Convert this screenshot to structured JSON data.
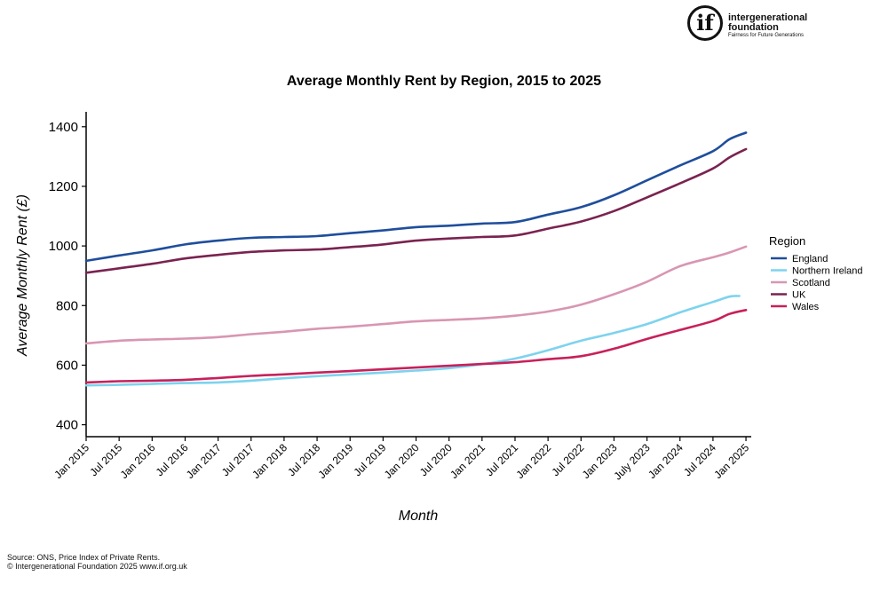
{
  "logo": {
    "mark": "if",
    "line1": "intergenerational",
    "line2": "foundation",
    "tagline": "Fairness for Future Generations"
  },
  "source": {
    "line1": "Source: ONS, Price Index of Private Rents.",
    "line2": "© Intergenerational Foundation 2025 www.if.org.uk"
  },
  "chart_data": {
    "type": "line",
    "title": "Average Monthly Rent by Region, 2015 to 2025",
    "xlabel": "Month",
    "ylabel": "Average Monthly Rent (£)",
    "ylim": [
      360,
      1450
    ],
    "yticks": [
      400,
      600,
      800,
      1000,
      1200,
      1400
    ],
    "xlim": [
      2015.0,
      2025.08
    ],
    "xticks": [
      {
        "label": "Jan 2015",
        "x": 2015.0
      },
      {
        "label": "Jul 2015",
        "x": 2015.5
      },
      {
        "label": "Jan 2016",
        "x": 2016.0
      },
      {
        "label": "Jul 2016",
        "x": 2016.5
      },
      {
        "label": "Jan 2017",
        "x": 2017.0
      },
      {
        "label": "Jul 2017",
        "x": 2017.5
      },
      {
        "label": "Jan 2018",
        "x": 2018.0
      },
      {
        "label": "Jul 2018",
        "x": 2018.5
      },
      {
        "label": "Jan 2019",
        "x": 2019.0
      },
      {
        "label": "Jul 2019",
        "x": 2019.5
      },
      {
        "label": "Jan 2020",
        "x": 2020.0
      },
      {
        "label": "Jul 2020",
        "x": 2020.5
      },
      {
        "label": "Jan 2021",
        "x": 2021.0
      },
      {
        "label": "Jul 2021",
        "x": 2021.5
      },
      {
        "label": "Jan 2022",
        "x": 2022.0
      },
      {
        "label": "Jul 2022",
        "x": 2022.5
      },
      {
        "label": "Jan 2023",
        "x": 2023.0
      },
      {
        "label": "July 2023",
        "x": 2023.5
      },
      {
        "label": "Jan 2024",
        "x": 2024.0
      },
      {
        "label": "Jul 2024",
        "x": 2024.5
      },
      {
        "label": "Jan 2025",
        "x": 2025.0
      }
    ],
    "grid": false,
    "legend": {
      "title": "Region",
      "position": "right"
    },
    "series": [
      {
        "name": "England",
        "color": "#1f4e9c",
        "points": [
          [
            2015.0,
            950
          ],
          [
            2015.5,
            968
          ],
          [
            2016.0,
            985
          ],
          [
            2016.5,
            1005
          ],
          [
            2017.0,
            1018
          ],
          [
            2017.5,
            1027
          ],
          [
            2018.0,
            1030
          ],
          [
            2018.5,
            1033
          ],
          [
            2019.0,
            1043
          ],
          [
            2019.5,
            1052
          ],
          [
            2020.0,
            1063
          ],
          [
            2020.5,
            1068
          ],
          [
            2021.0,
            1075
          ],
          [
            2021.5,
            1080
          ],
          [
            2022.0,
            1105
          ],
          [
            2022.5,
            1130
          ],
          [
            2023.0,
            1170
          ],
          [
            2023.5,
            1220
          ],
          [
            2024.0,
            1270
          ],
          [
            2024.5,
            1318
          ],
          [
            2024.75,
            1358
          ],
          [
            2025.0,
            1380
          ]
        ]
      },
      {
        "name": "Northern Ireland",
        "color": "#7dd3ee",
        "points": [
          [
            2015.0,
            532
          ],
          [
            2015.5,
            534
          ],
          [
            2016.0,
            537
          ],
          [
            2016.5,
            540
          ],
          [
            2017.0,
            542
          ],
          [
            2017.5,
            548
          ],
          [
            2018.0,
            556
          ],
          [
            2018.5,
            563
          ],
          [
            2019.0,
            569
          ],
          [
            2019.5,
            575
          ],
          [
            2020.0,
            582
          ],
          [
            2020.5,
            590
          ],
          [
            2021.0,
            603
          ],
          [
            2021.5,
            622
          ],
          [
            2022.0,
            650
          ],
          [
            2022.5,
            682
          ],
          [
            2023.0,
            708
          ],
          [
            2023.5,
            738
          ],
          [
            2024.0,
            777
          ],
          [
            2024.5,
            812
          ],
          [
            2024.75,
            830
          ],
          [
            2024.9,
            832
          ]
        ]
      },
      {
        "name": "Scotland",
        "color": "#d896b2",
        "points": [
          [
            2015.0,
            673
          ],
          [
            2015.5,
            682
          ],
          [
            2016.0,
            686
          ],
          [
            2016.5,
            689
          ],
          [
            2017.0,
            694
          ],
          [
            2017.5,
            704
          ],
          [
            2018.0,
            712
          ],
          [
            2018.5,
            722
          ],
          [
            2019.0,
            729
          ],
          [
            2019.5,
            738
          ],
          [
            2020.0,
            747
          ],
          [
            2020.5,
            752
          ],
          [
            2021.0,
            757
          ],
          [
            2021.5,
            766
          ],
          [
            2022.0,
            780
          ],
          [
            2022.5,
            803
          ],
          [
            2023.0,
            838
          ],
          [
            2023.5,
            880
          ],
          [
            2024.0,
            932
          ],
          [
            2024.5,
            962
          ],
          [
            2024.75,
            978
          ],
          [
            2025.0,
            998
          ]
        ]
      },
      {
        "name": "UK",
        "color": "#7a2350",
        "points": [
          [
            2015.0,
            910
          ],
          [
            2015.5,
            925
          ],
          [
            2016.0,
            940
          ],
          [
            2016.5,
            958
          ],
          [
            2017.0,
            970
          ],
          [
            2017.5,
            980
          ],
          [
            2018.0,
            985
          ],
          [
            2018.5,
            988
          ],
          [
            2019.0,
            996
          ],
          [
            2019.5,
            1005
          ],
          [
            2020.0,
            1018
          ],
          [
            2020.5,
            1025
          ],
          [
            2021.0,
            1030
          ],
          [
            2021.5,
            1035
          ],
          [
            2022.0,
            1058
          ],
          [
            2022.5,
            1082
          ],
          [
            2023.0,
            1117
          ],
          [
            2023.5,
            1163
          ],
          [
            2024.0,
            1210
          ],
          [
            2024.5,
            1260
          ],
          [
            2024.75,
            1297
          ],
          [
            2025.0,
            1325
          ]
        ]
      },
      {
        "name": "Wales",
        "color": "#c8205a",
        "points": [
          [
            2015.0,
            542
          ],
          [
            2015.5,
            546
          ],
          [
            2016.0,
            548
          ],
          [
            2016.5,
            551
          ],
          [
            2017.0,
            557
          ],
          [
            2017.5,
            564
          ],
          [
            2018.0,
            569
          ],
          [
            2018.5,
            575
          ],
          [
            2019.0,
            580
          ],
          [
            2019.5,
            586
          ],
          [
            2020.0,
            592
          ],
          [
            2020.5,
            598
          ],
          [
            2021.0,
            604
          ],
          [
            2021.5,
            610
          ],
          [
            2022.0,
            620
          ],
          [
            2022.5,
            630
          ],
          [
            2023.0,
            655
          ],
          [
            2023.5,
            688
          ],
          [
            2024.0,
            718
          ],
          [
            2024.5,
            748
          ],
          [
            2024.75,
            772
          ],
          [
            2025.0,
            785
          ]
        ]
      }
    ]
  }
}
